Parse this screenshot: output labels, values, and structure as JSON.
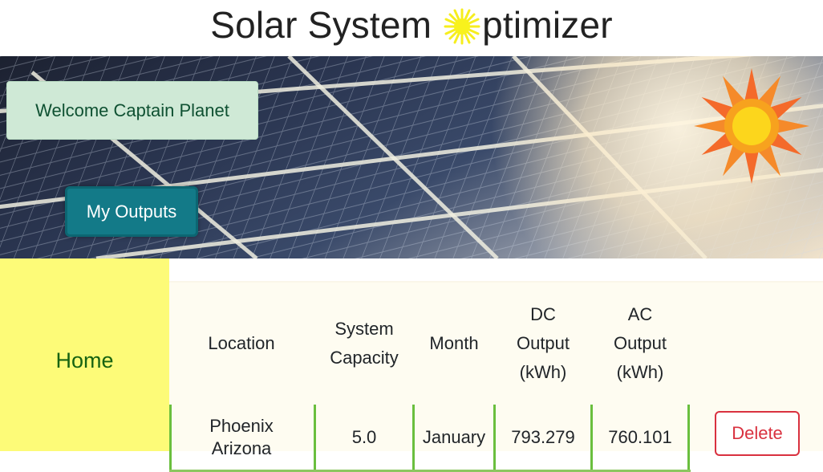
{
  "header": {
    "title_before": "Solar System ",
    "title_icon": "sun-icon",
    "title_after": "ptimizer",
    "colors": {
      "title_sun": "#f6f01e"
    }
  },
  "hero": {
    "welcome_text": "Welcome Captain Planet",
    "outputs_button": "My Outputs",
    "decorative_icon": "sun-icon",
    "colors": {
      "welcome_bg": "#cfe9d6",
      "button_bg": "#137a88"
    }
  },
  "sidebar": {
    "home_label": "Home",
    "colors": {
      "bg": "#fdfb78",
      "link": "#176311"
    }
  },
  "table": {
    "headers": {
      "location": "Location",
      "system_capacity_1": "System",
      "system_capacity_2": "Capacity",
      "month": "Month",
      "dc_1": "DC",
      "dc_2": "Output",
      "dc_3": "(kWh)",
      "ac_1": "AC",
      "ac_2": "Output",
      "ac_3": "(kWh)"
    },
    "rows": [
      {
        "location_1": "Phoenix",
        "location_2": "Arizona",
        "system_capacity": "5.0",
        "month": "January",
        "dc_output": "793.279",
        "ac_output": "760.101",
        "action": "Delete"
      }
    ],
    "colors": {
      "border": "#6abf3e",
      "delete": "#d9313f"
    }
  }
}
